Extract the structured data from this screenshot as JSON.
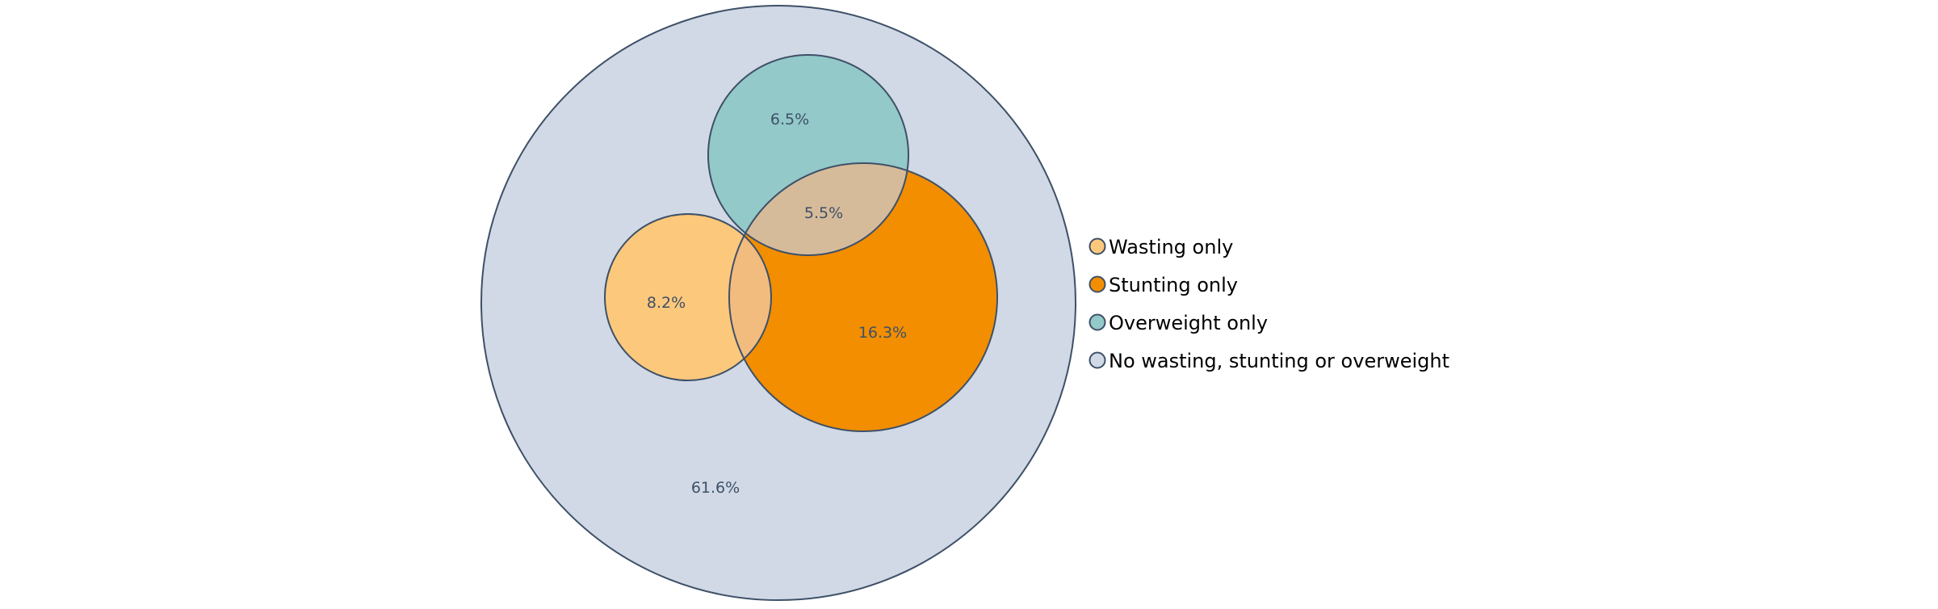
{
  "chart_data": {
    "type": "venn",
    "title": "",
    "sets": [
      {
        "name": "Wasting only",
        "color": "#FCC87C"
      },
      {
        "name": "Stunting only",
        "color": "#F28E00"
      },
      {
        "name": "Overweight only",
        "color": "#93C9C9"
      },
      {
        "name": "No wasting, stunting or overweight",
        "color": "#D0D9E5"
      }
    ],
    "regions": [
      {
        "label": "6.5%",
        "value": 6.5
      },
      {
        "label": "5.5%",
        "value": 5.5
      },
      {
        "label": "8.2%",
        "value": 8.2
      },
      {
        "label": "16.3%",
        "value": 16.3
      },
      {
        "label": "61.6%",
        "value": 61.6
      }
    ],
    "overlap_colors": {
      "wasting_stunting": "#F2BC7F",
      "stunting_overweight": "#D5BB9A"
    },
    "outline_color": "#3E5068",
    "label_color": "#3E5068",
    "legend_position": "right"
  }
}
